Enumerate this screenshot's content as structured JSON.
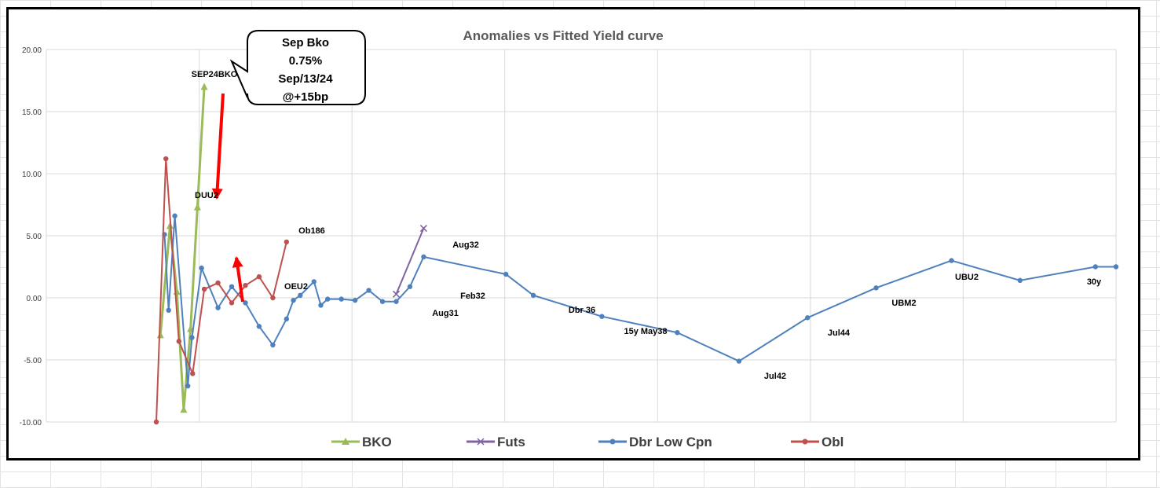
{
  "chart_data": {
    "type": "line",
    "title": "Anomalies vs Fitted Yield curve",
    "ylim": [
      -10,
      20
    ],
    "yticks": [
      "20.00",
      "15.00",
      "10.00",
      "5.00",
      "0.00",
      "-5.00",
      "-10.00"
    ],
    "grid": "on",
    "legend_placement": "bottom",
    "series": [
      {
        "name": "BKO",
        "color": "#9BBB59",
        "marker": "triangle",
        "points": [
          [
            0.3,
            -3.0
          ],
          [
            1.0,
            5.8
          ],
          [
            1.5,
            0.5
          ],
          [
            2.0,
            -9.0
          ],
          [
            2.5,
            -2.5
          ],
          [
            3.0,
            7.3
          ],
          [
            3.5,
            17.0
          ]
        ]
      },
      {
        "name": "Futs",
        "color": "#8064A2",
        "marker": "x",
        "points": [
          [
            17.5,
            0.3
          ],
          [
            19.5,
            5.6
          ]
        ]
      },
      {
        "name": "Dbr Low Cpn",
        "color": "#4F81BD",
        "marker": "circle",
        "points": [
          [
            0.6,
            5.1
          ],
          [
            0.9,
            -1.0
          ],
          [
            1.35,
            6.6
          ],
          [
            2.3,
            -7.1
          ],
          [
            2.6,
            -3.2
          ],
          [
            3.3,
            2.4
          ],
          [
            4.5,
            -0.8
          ],
          [
            5.5,
            0.9
          ],
          [
            6.5,
            -0.4
          ],
          [
            7.5,
            -2.3
          ],
          [
            8.5,
            -3.8
          ],
          [
            9.5,
            -1.7
          ],
          [
            10.0,
            -0.2
          ],
          [
            10.5,
            0.2
          ],
          [
            11.5,
            1.3
          ],
          [
            12.0,
            -0.6
          ],
          [
            12.5,
            -0.1
          ],
          [
            13.5,
            -0.1
          ],
          [
            14.5,
            -0.2
          ],
          [
            15.5,
            0.6
          ],
          [
            16.5,
            -0.3
          ],
          [
            17.5,
            -0.3
          ],
          [
            18.5,
            0.9
          ],
          [
            19.5,
            3.3
          ],
          [
            25.5,
            1.9
          ],
          [
            27.5,
            0.2
          ],
          [
            32.5,
            -1.5
          ],
          [
            38.0,
            -2.8
          ],
          [
            42.5,
            -5.1
          ],
          [
            47.5,
            -1.6
          ],
          [
            52.5,
            0.8
          ],
          [
            58.0,
            3.0
          ],
          [
            63.0,
            1.4
          ],
          [
            68.5,
            2.5
          ],
          [
            70.0,
            2.5
          ]
        ]
      },
      {
        "name": "Obl",
        "color": "#C0504D",
        "marker": "circle",
        "points": [
          [
            0.0,
            -10.0
          ],
          [
            0.7,
            11.2
          ],
          [
            1.65,
            -3.5
          ],
          [
            2.65,
            -6.1
          ],
          [
            3.5,
            0.7
          ],
          [
            4.5,
            1.2
          ],
          [
            5.5,
            -0.4
          ],
          [
            6.5,
            1.0
          ],
          [
            7.5,
            1.7
          ],
          [
            8.5,
            0.0
          ],
          [
            9.5,
            4.5
          ]
        ]
      }
    ],
    "annotations": [
      "SEP24BKO",
      "DUU2",
      "Ob186",
      "OEU2",
      "Aug32",
      "Aug31",
      "Feb32",
      "Dbr 36",
      "15y May38",
      "Jul42",
      "Jul44",
      "UBM2",
      "UBU2",
      "30y"
    ],
    "callout": [
      "Sep Bko",
      "0.75%",
      "Sep/13/24",
      "@+15bp"
    ],
    "legend": [
      "BKO",
      "Futs",
      "Dbr Low Cpn",
      "Obl"
    ]
  }
}
